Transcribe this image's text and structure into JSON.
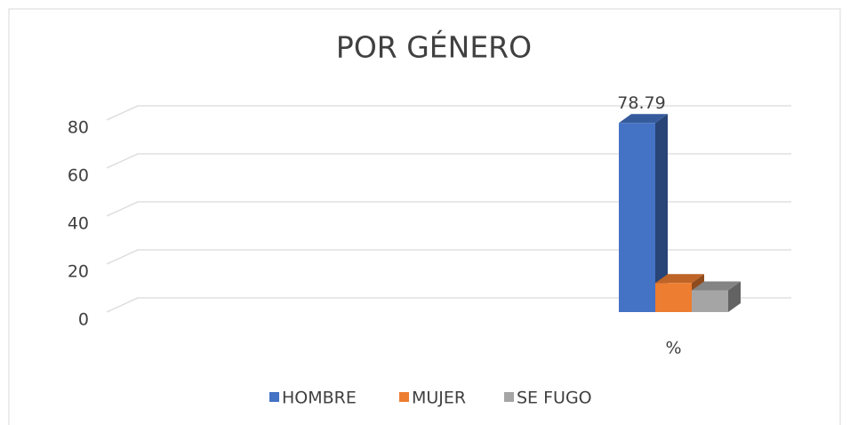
{
  "chart_data": {
    "type": "bar3d",
    "title": "POR GÉNERO",
    "categories": [
      "%"
    ],
    "series": [
      {
        "name": "HOMBRE",
        "color": "#4472c4",
        "values": [
          78.79
        ],
        "value_labels": [
          "78.79"
        ]
      },
      {
        "name": "MUJER",
        "color": "#ed7d31",
        "values": [
          12.12
        ]
      },
      {
        "name": "SE FUGO",
        "color": "#a5a5a5",
        "values": [
          9.09
        ]
      }
    ],
    "ylim": [
      0,
      80
    ],
    "yticks": [
      0,
      20,
      40,
      60,
      80
    ],
    "grid": true,
    "legend": "bottom"
  }
}
